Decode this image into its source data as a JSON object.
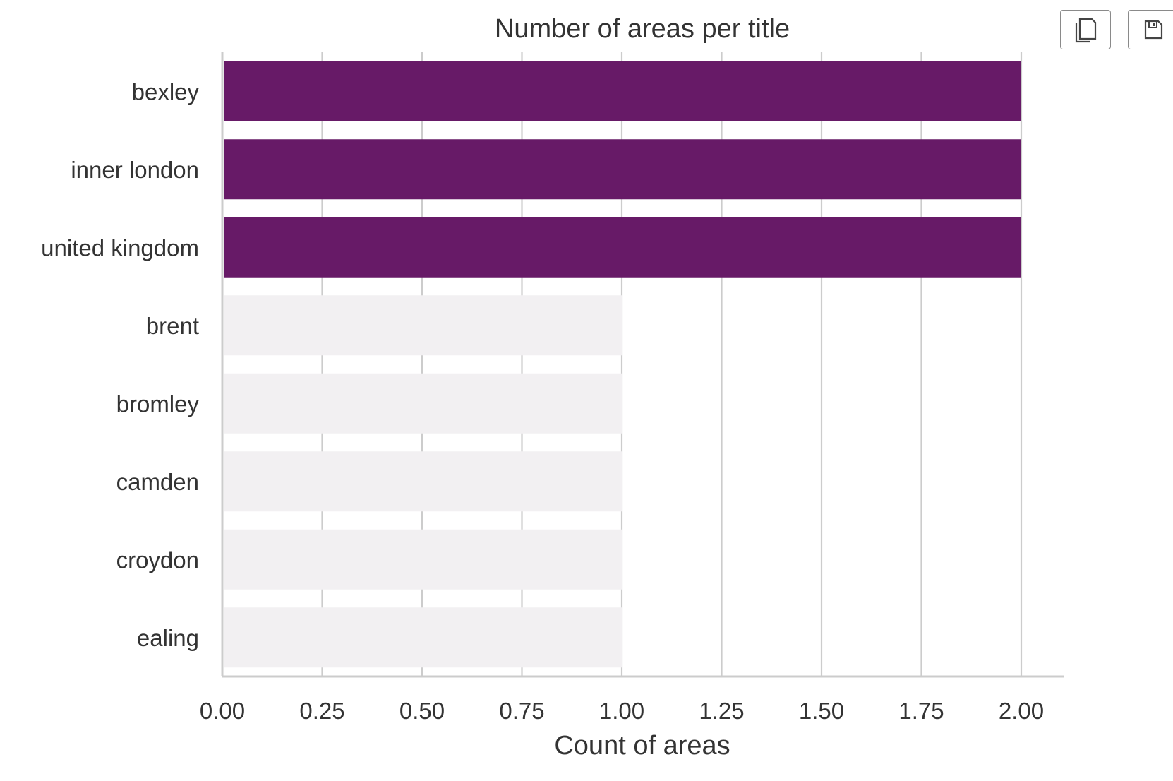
{
  "chart_data": {
    "type": "bar",
    "orientation": "horizontal",
    "title": "Number of areas per title",
    "xlabel": "Count of areas",
    "ylabel": "",
    "categories": [
      "bexley",
      "inner london",
      "united kingdom",
      "brent",
      "bromley",
      "camden",
      "croydon",
      "ealing"
    ],
    "values": [
      2,
      2,
      2,
      1,
      1,
      1,
      1,
      1
    ],
    "highlighted": [
      true,
      true,
      true,
      false,
      false,
      false,
      false,
      false
    ],
    "xlim": [
      0,
      2.1
    ],
    "xticks": [
      "0.00",
      "0.25",
      "0.50",
      "0.75",
      "1.00",
      "1.25",
      "1.50",
      "1.75",
      "2.00"
    ],
    "xtick_values": [
      0,
      0.25,
      0.5,
      0.75,
      1.0,
      1.25,
      1.5,
      1.75,
      2.0
    ],
    "grid": "vertical",
    "legend": "none",
    "colors": {
      "highlight": "#671a67",
      "base": "#f2f0f2",
      "grid": "#cccccc",
      "axis": "#cccccc",
      "text": "#333333"
    }
  },
  "toolbar": {
    "copy_icon": "copy-icon",
    "save_icon": "save-icon"
  }
}
